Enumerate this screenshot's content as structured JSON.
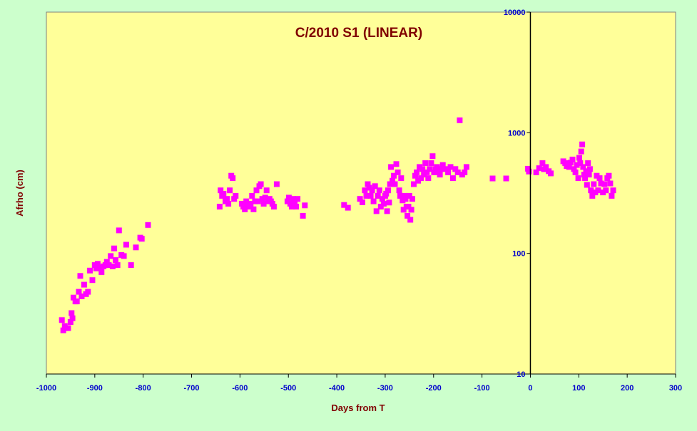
{
  "chart_data": {
    "type": "scatter",
    "title": "C/2010 S1 (LINEAR)",
    "xlabel": "Days from T",
    "ylabel": "Afrho (cm)",
    "xlim": [
      -1000,
      300
    ],
    "ylim": [
      10,
      10000
    ],
    "y_scale": "log",
    "x_ticks": [
      -1000,
      -900,
      -800,
      -700,
      -600,
      -500,
      -400,
      -300,
      -200,
      -100,
      0,
      100,
      200,
      300
    ],
    "x_tick_labels": [
      "-1000",
      "-900",
      "-800",
      "-700",
      "-600",
      "-500",
      "-400",
      "-300",
      "-200",
      "-100",
      "0",
      "100",
      "200",
      "300"
    ],
    "y_ticks": [
      10,
      100,
      1000,
      10000
    ],
    "y_tick_labels": [
      "10",
      "100",
      "1000",
      "10000"
    ],
    "grid": false,
    "vertical_reference_x": 0,
    "colors": {
      "plot_bg": "#ffff99",
      "outer_bg": "#ccffcc",
      "marker": "#ff00ff",
      "tick_text": "#0000cc",
      "title_text": "#800000"
    },
    "series": [
      {
        "marker": "square",
        "points": [
          [
            -968,
            28
          ],
          [
            -965,
            23
          ],
          [
            -962,
            25
          ],
          [
            -958,
            24
          ],
          [
            -955,
            24
          ],
          [
            -950,
            27
          ],
          [
            -948,
            32
          ],
          [
            -946,
            29
          ],
          [
            -944,
            43
          ],
          [
            -940,
            40
          ],
          [
            -937,
            40
          ],
          [
            -933,
            48
          ],
          [
            -930,
            65
          ],
          [
            -927,
            44
          ],
          [
            -922,
            55
          ],
          [
            -918,
            46
          ],
          [
            -914,
            48
          ],
          [
            -910,
            72
          ],
          [
            -905,
            60
          ],
          [
            -900,
            80
          ],
          [
            -897,
            75
          ],
          [
            -894,
            82
          ],
          [
            -890,
            76
          ],
          [
            -886,
            70
          ],
          [
            -882,
            78
          ],
          [
            -878,
            80
          ],
          [
            -875,
            85
          ],
          [
            -871,
            80
          ],
          [
            -867,
            95
          ],
          [
            -863,
            78
          ],
          [
            -860,
            110
          ],
          [
            -857,
            88
          ],
          [
            -853,
            80
          ],
          [
            -850,
            155
          ],
          [
            -845,
            97
          ],
          [
            -840,
            95
          ],
          [
            -835,
            118
          ],
          [
            -825,
            80
          ],
          [
            -815,
            112
          ],
          [
            -806,
            135
          ],
          [
            -803,
            132
          ],
          [
            -790,
            172
          ],
          [
            -642,
            244
          ],
          [
            -640,
            333
          ],
          [
            -637,
            300
          ],
          [
            -634,
            312
          ],
          [
            -630,
            270
          ],
          [
            -627,
            283
          ],
          [
            -624,
            258
          ],
          [
            -621,
            333
          ],
          [
            -618,
            440
          ],
          [
            -615,
            420
          ],
          [
            -612,
            283
          ],
          [
            -609,
            300
          ],
          [
            -596,
            258
          ],
          [
            -593,
            244
          ],
          [
            -590,
            232
          ],
          [
            -587,
            270
          ],
          [
            -584,
            252
          ],
          [
            -581,
            244
          ],
          [
            -578,
            258
          ],
          [
            -575,
            300
          ],
          [
            -572,
            232
          ],
          [
            -569,
            270
          ],
          [
            -566,
            333
          ],
          [
            -563,
            270
          ],
          [
            -560,
            361
          ],
          [
            -557,
            375
          ],
          [
            -554,
            283
          ],
          [
            -551,
            258
          ],
          [
            -548,
            290
          ],
          [
            -545,
            333
          ],
          [
            -542,
            270
          ],
          [
            -539,
            283
          ],
          [
            -536,
            270
          ],
          [
            -533,
            258
          ],
          [
            -530,
            244
          ],
          [
            -524,
            375
          ],
          [
            -502,
            270
          ],
          [
            -499,
            290
          ],
          [
            -496,
            258
          ],
          [
            -493,
            244
          ],
          [
            -490,
            283
          ],
          [
            -487,
            258
          ],
          [
            -484,
            244
          ],
          [
            -481,
            283
          ],
          [
            -470,
            205
          ],
          [
            -466,
            250
          ],
          [
            -385,
            252
          ],
          [
            -377,
            239
          ],
          [
            -352,
            283
          ],
          [
            -347,
            265
          ],
          [
            -342,
            333
          ],
          [
            -339,
            300
          ],
          [
            -336,
            375
          ],
          [
            -333,
            350
          ],
          [
            -330,
            300
          ],
          [
            -327,
            333
          ],
          [
            -324,
            270
          ],
          [
            -321,
            361
          ],
          [
            -318,
            224
          ],
          [
            -315,
            300
          ],
          [
            -312,
            333
          ],
          [
            -309,
            244
          ],
          [
            -306,
            283
          ],
          [
            -303,
            258
          ],
          [
            -300,
            300
          ],
          [
            -298,
            313
          ],
          [
            -296,
            224
          ],
          [
            -294,
            333
          ],
          [
            -292,
            264
          ],
          [
            -290,
            375
          ],
          [
            -288,
            520
          ],
          [
            -285,
            400
          ],
          [
            -282,
            440
          ],
          [
            -280,
            375
          ],
          [
            -277,
            550
          ],
          [
            -274,
            470
          ],
          [
            -271,
            333
          ],
          [
            -269,
            300
          ],
          [
            -267,
            420
          ],
          [
            -264,
            275
          ],
          [
            -262,
            230
          ],
          [
            -260,
            300
          ],
          [
            -258,
            283
          ],
          [
            -256,
            244
          ],
          [
            -254,
            205
          ],
          [
            -252,
            244
          ],
          [
            -250,
            300
          ],
          [
            -248,
            190
          ],
          [
            -246,
            230
          ],
          [
            -244,
            283
          ],
          [
            -241,
            375
          ],
          [
            -238,
            440
          ],
          [
            -235,
            470
          ],
          [
            -232,
            400
          ],
          [
            -229,
            520
          ],
          [
            -226,
            420
          ],
          [
            -223,
            500
          ],
          [
            -220,
            450
          ],
          [
            -217,
            560
          ],
          [
            -214,
            470
          ],
          [
            -211,
            420
          ],
          [
            -208,
            500
          ],
          [
            -205,
            560
          ],
          [
            -202,
            640
          ],
          [
            -199,
            470
          ],
          [
            -196,
            500
          ],
          [
            -193,
            520
          ],
          [
            -190,
            470
          ],
          [
            -187,
            450
          ],
          [
            -184,
            500
          ],
          [
            -181,
            540
          ],
          [
            -175,
            500
          ],
          [
            -170,
            470
          ],
          [
            -165,
            520
          ],
          [
            -160,
            420
          ],
          [
            -155,
            500
          ],
          [
            -150,
            470
          ],
          [
            -146,
            1270
          ],
          [
            -141,
            450
          ],
          [
            -136,
            470
          ],
          [
            -132,
            520
          ],
          [
            -78,
            418
          ],
          [
            -50,
            418
          ],
          [
            -5,
            503
          ],
          [
            -3,
            477
          ],
          [
            12,
            470
          ],
          [
            18,
            508
          ],
          [
            25,
            560
          ],
          [
            28,
            499
          ],
          [
            32,
            520
          ],
          [
            38,
            480
          ],
          [
            42,
            460
          ],
          [
            68,
            580
          ],
          [
            72,
            560
          ],
          [
            75,
            530
          ],
          [
            80,
            520
          ],
          [
            83,
            565
          ],
          [
            87,
            600
          ],
          [
            90,
            500
          ],
          [
            93,
            470
          ],
          [
            96,
            540
          ],
          [
            99,
            420
          ],
          [
            101,
            620
          ],
          [
            103,
            560
          ],
          [
            105,
            700
          ],
          [
            107,
            800
          ],
          [
            109,
            520
          ],
          [
            111,
            450
          ],
          [
            113,
            420
          ],
          [
            115,
            480
          ],
          [
            117,
            370
          ],
          [
            119,
            560
          ],
          [
            121,
            450
          ],
          [
            123,
            500
          ],
          [
            125,
            333
          ],
          [
            128,
            300
          ],
          [
            131,
            375
          ],
          [
            134,
            320
          ],
          [
            137,
            440
          ],
          [
            140,
            333
          ],
          [
            143,
            420
          ],
          [
            146,
            380
          ],
          [
            150,
            320
          ],
          [
            153,
            375
          ],
          [
            156,
            333
          ],
          [
            159,
            420
          ],
          [
            162,
            440
          ],
          [
            165,
            380
          ],
          [
            168,
            300
          ],
          [
            171,
            333
          ]
        ]
      }
    ]
  }
}
